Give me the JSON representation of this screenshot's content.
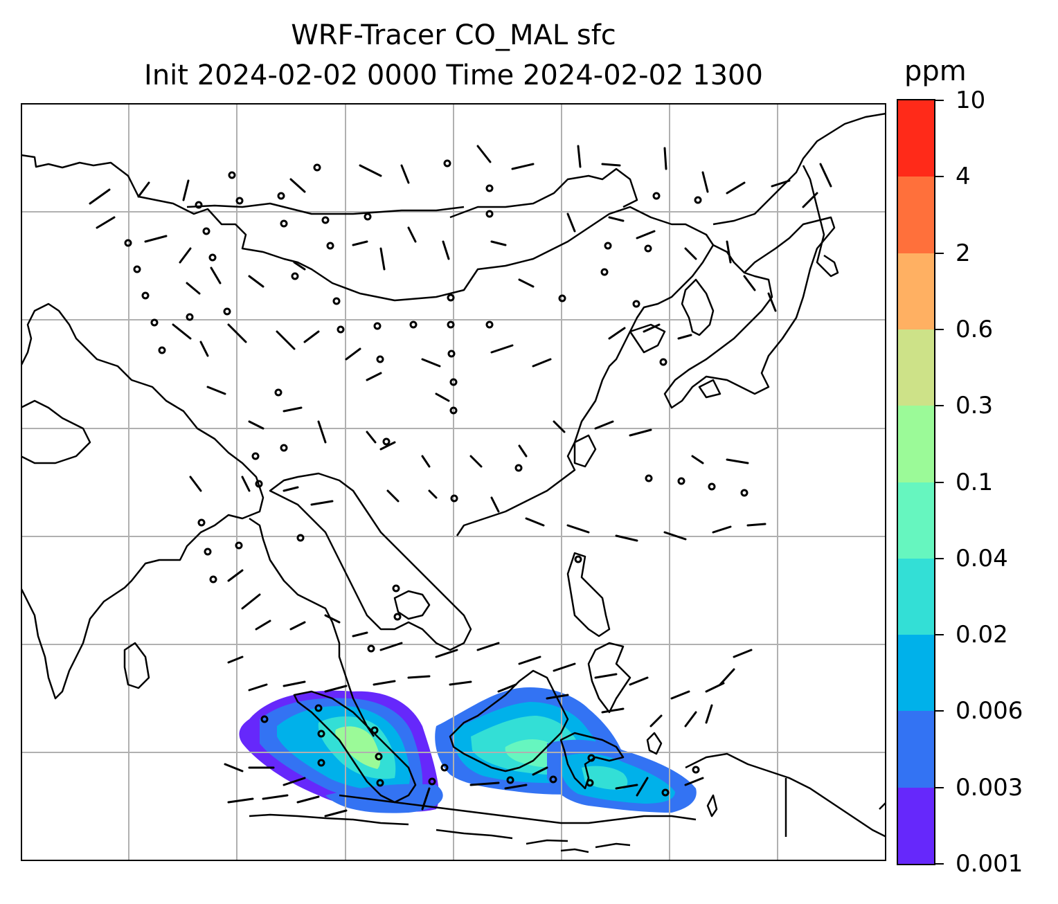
{
  "title": {
    "line1": "WRF-Tracer CO_MAL sfc",
    "line2": "Init 2024-02-02 0000 Time 2024-02-02 1300"
  },
  "colorbar": {
    "unit": "ppm",
    "labels": [
      "0.001",
      "0.003",
      "0.006",
      "0.02",
      "0.04",
      "0.1",
      "0.3",
      "0.6",
      "2",
      "4",
      "10"
    ],
    "colors": [
      "#6628fb",
      "#3373f3",
      "#00b1ea",
      "#33dfd6",
      "#66f6bf",
      "#9bfa98",
      "#cde288",
      "#ffb062",
      "#ff703b",
      "#ff2a19"
    ]
  },
  "map": {
    "gridlines": true,
    "coastline_color": "#000000",
    "grid_color": "#b0b0b0"
  }
}
